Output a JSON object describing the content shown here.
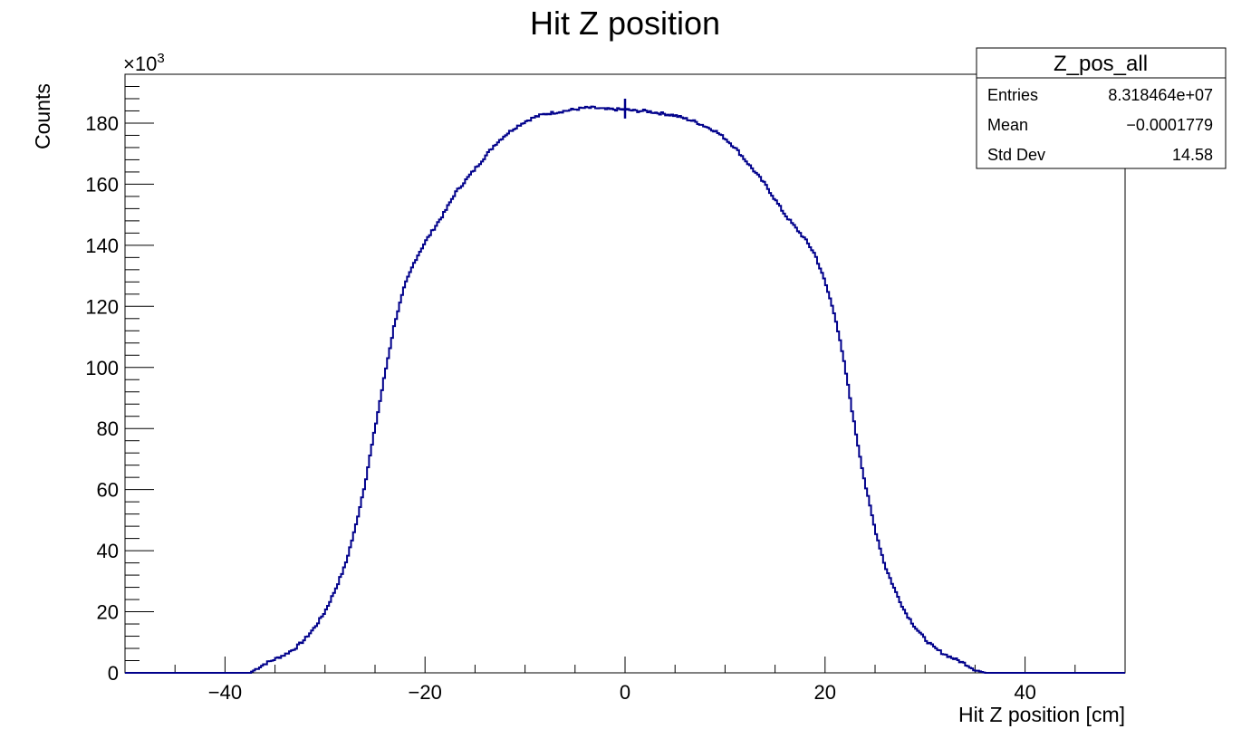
{
  "chart_data": {
    "type": "histogram",
    "title": "Hit Z position",
    "xlabel": "Hit Z position [cm]",
    "ylabel": "Counts",
    "y_multiplier": "×10",
    "y_multiplier_exp": "3",
    "xlim": [
      -50,
      50
    ],
    "ylim": [
      0,
      196
    ],
    "x_ticks": [
      -40,
      -20,
      0,
      20,
      40
    ],
    "x_tick_labels": [
      "−40",
      "−20",
      "0",
      "20",
      "40"
    ],
    "y_ticks": [
      0,
      20,
      40,
      60,
      80,
      100,
      120,
      140,
      160,
      180
    ],
    "y_tick_labels": [
      "0",
      "20",
      "40",
      "60",
      "80",
      "100",
      "120",
      "140",
      "160",
      "180"
    ],
    "line_color": "#00008b",
    "grid": false,
    "legend": "none",
    "series": [
      {
        "x": [
          -50,
          -40,
          -37.5,
          -37,
          -36,
          -35,
          -34,
          -33,
          -32,
          -31,
          -30,
          -29,
          -28,
          -27,
          -26,
          -25,
          -24,
          -23,
          -22,
          -21,
          -20,
          -19,
          -18,
          -17,
          -16,
          -15,
          -14,
          -13,
          -12,
          -11,
          -10,
          -9,
          -8,
          -7,
          -6,
          -5,
          -4,
          -3,
          -2,
          -1,
          0,
          1,
          2,
          3,
          4,
          5,
          6,
          7,
          8,
          9,
          10,
          11,
          12,
          13,
          14,
          15,
          16,
          17,
          18,
          19,
          20,
          21,
          22,
          23,
          24,
          25,
          26,
          27,
          28,
          29,
          30,
          31,
          32,
          33,
          34,
          35,
          36,
          37,
          37.5,
          40,
          50
        ],
        "y": [
          0,
          0,
          0,
          1,
          3,
          4.5,
          6,
          8,
          11,
          15,
          20,
          27,
          35,
          47,
          62,
          80,
          98,
          115,
          127,
          135,
          141,
          146,
          151,
          157,
          161,
          165,
          169,
          173,
          176,
          178.5,
          180.5,
          182,
          183,
          183.5,
          184,
          184.5,
          185,
          185,
          184.5,
          184.5,
          184.5,
          184,
          184,
          183.5,
          183,
          182.5,
          181.5,
          180.5,
          179,
          177.5,
          175,
          172,
          168,
          164,
          160,
          155,
          150,
          146,
          142,
          137,
          128,
          117,
          100,
          80,
          62,
          47,
          35,
          27,
          20,
          15,
          11,
          8,
          6,
          4.5,
          3,
          1,
          0,
          0,
          0,
          0,
          0
        ]
      }
    ]
  },
  "stats_box": {
    "name": "Z_pos_all",
    "rows": [
      {
        "label": "Entries",
        "value": "8.318464e+07"
      },
      {
        "label": "Mean",
        "value": "−0.0001779"
      },
      {
        "label": "Std Dev",
        "value": "14.58"
      }
    ]
  }
}
